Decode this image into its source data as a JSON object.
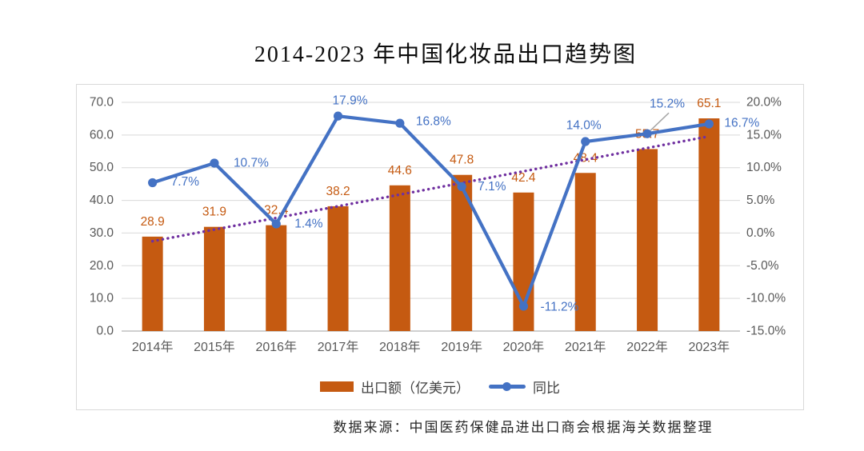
{
  "chart_data": {
    "type": "bar+line",
    "title": "2014-2023 年中国化妆品出口趋势图",
    "categories": [
      "2014年",
      "2015年",
      "2016年",
      "2017年",
      "2018年",
      "2019年",
      "2020年",
      "2021年",
      "2022年",
      "2023年"
    ],
    "series": [
      {
        "name": "出口额（亿美元）",
        "type": "bar",
        "axis": "left",
        "color": "#C55A11",
        "values": [
          28.9,
          31.9,
          32.4,
          38.2,
          44.6,
          47.8,
          42.4,
          48.4,
          55.7,
          65.1
        ],
        "labels": [
          "28.9",
          "31.9",
          "32.4",
          "38.2",
          "44.6",
          "47.8",
          "42.4",
          "48.4",
          "55.7",
          "65.1"
        ]
      },
      {
        "name": "同比",
        "type": "line",
        "axis": "right",
        "color": "#4472C4",
        "values": [
          7.7,
          10.7,
          1.4,
          17.9,
          16.8,
          7.1,
          -11.2,
          14.0,
          15.2,
          16.7
        ],
        "labels": [
          "7.7%",
          "10.7%",
          "1.4%",
          "17.9%",
          "16.8%",
          "7.1%",
          "-11.2%",
          "14.0%",
          "15.2%",
          "16.7%"
        ]
      }
    ],
    "trendline": {
      "series": "出口额（亿美元）",
      "style": "dotted",
      "color": "#7030A0",
      "start_value": 27.5,
      "end_value": 59.6
    },
    "callout": {
      "series": "同比",
      "point_index": 8,
      "label": "15.2%",
      "leader_color": "#A6A6A6"
    },
    "left_axis": {
      "min": 0,
      "max": 70,
      "step": 10,
      "tick_labels": [
        "0.0",
        "10.0",
        "20.0",
        "30.0",
        "40.0",
        "50.0",
        "60.0",
        "70.0"
      ]
    },
    "right_axis": {
      "min": -15,
      "max": 20,
      "step": 5,
      "tick_labels": [
        "-15.0%",
        "-10.0%",
        "-5.0%",
        "0.0%",
        "5.0%",
        "10.0%",
        "15.0%",
        "20.0%"
      ]
    },
    "grid": true,
    "legend_position": "bottom",
    "colors": {
      "grid": "#D9D9D9",
      "zero_line": "#BFBFBF",
      "axis_text": "#595959",
      "bar_label": "#C55A11",
      "line_label": "#4472C4",
      "plot_border": "#D9D9D9"
    }
  },
  "source_note": "数据来源：中国医药保健品进出口商会根据海关数据整理"
}
